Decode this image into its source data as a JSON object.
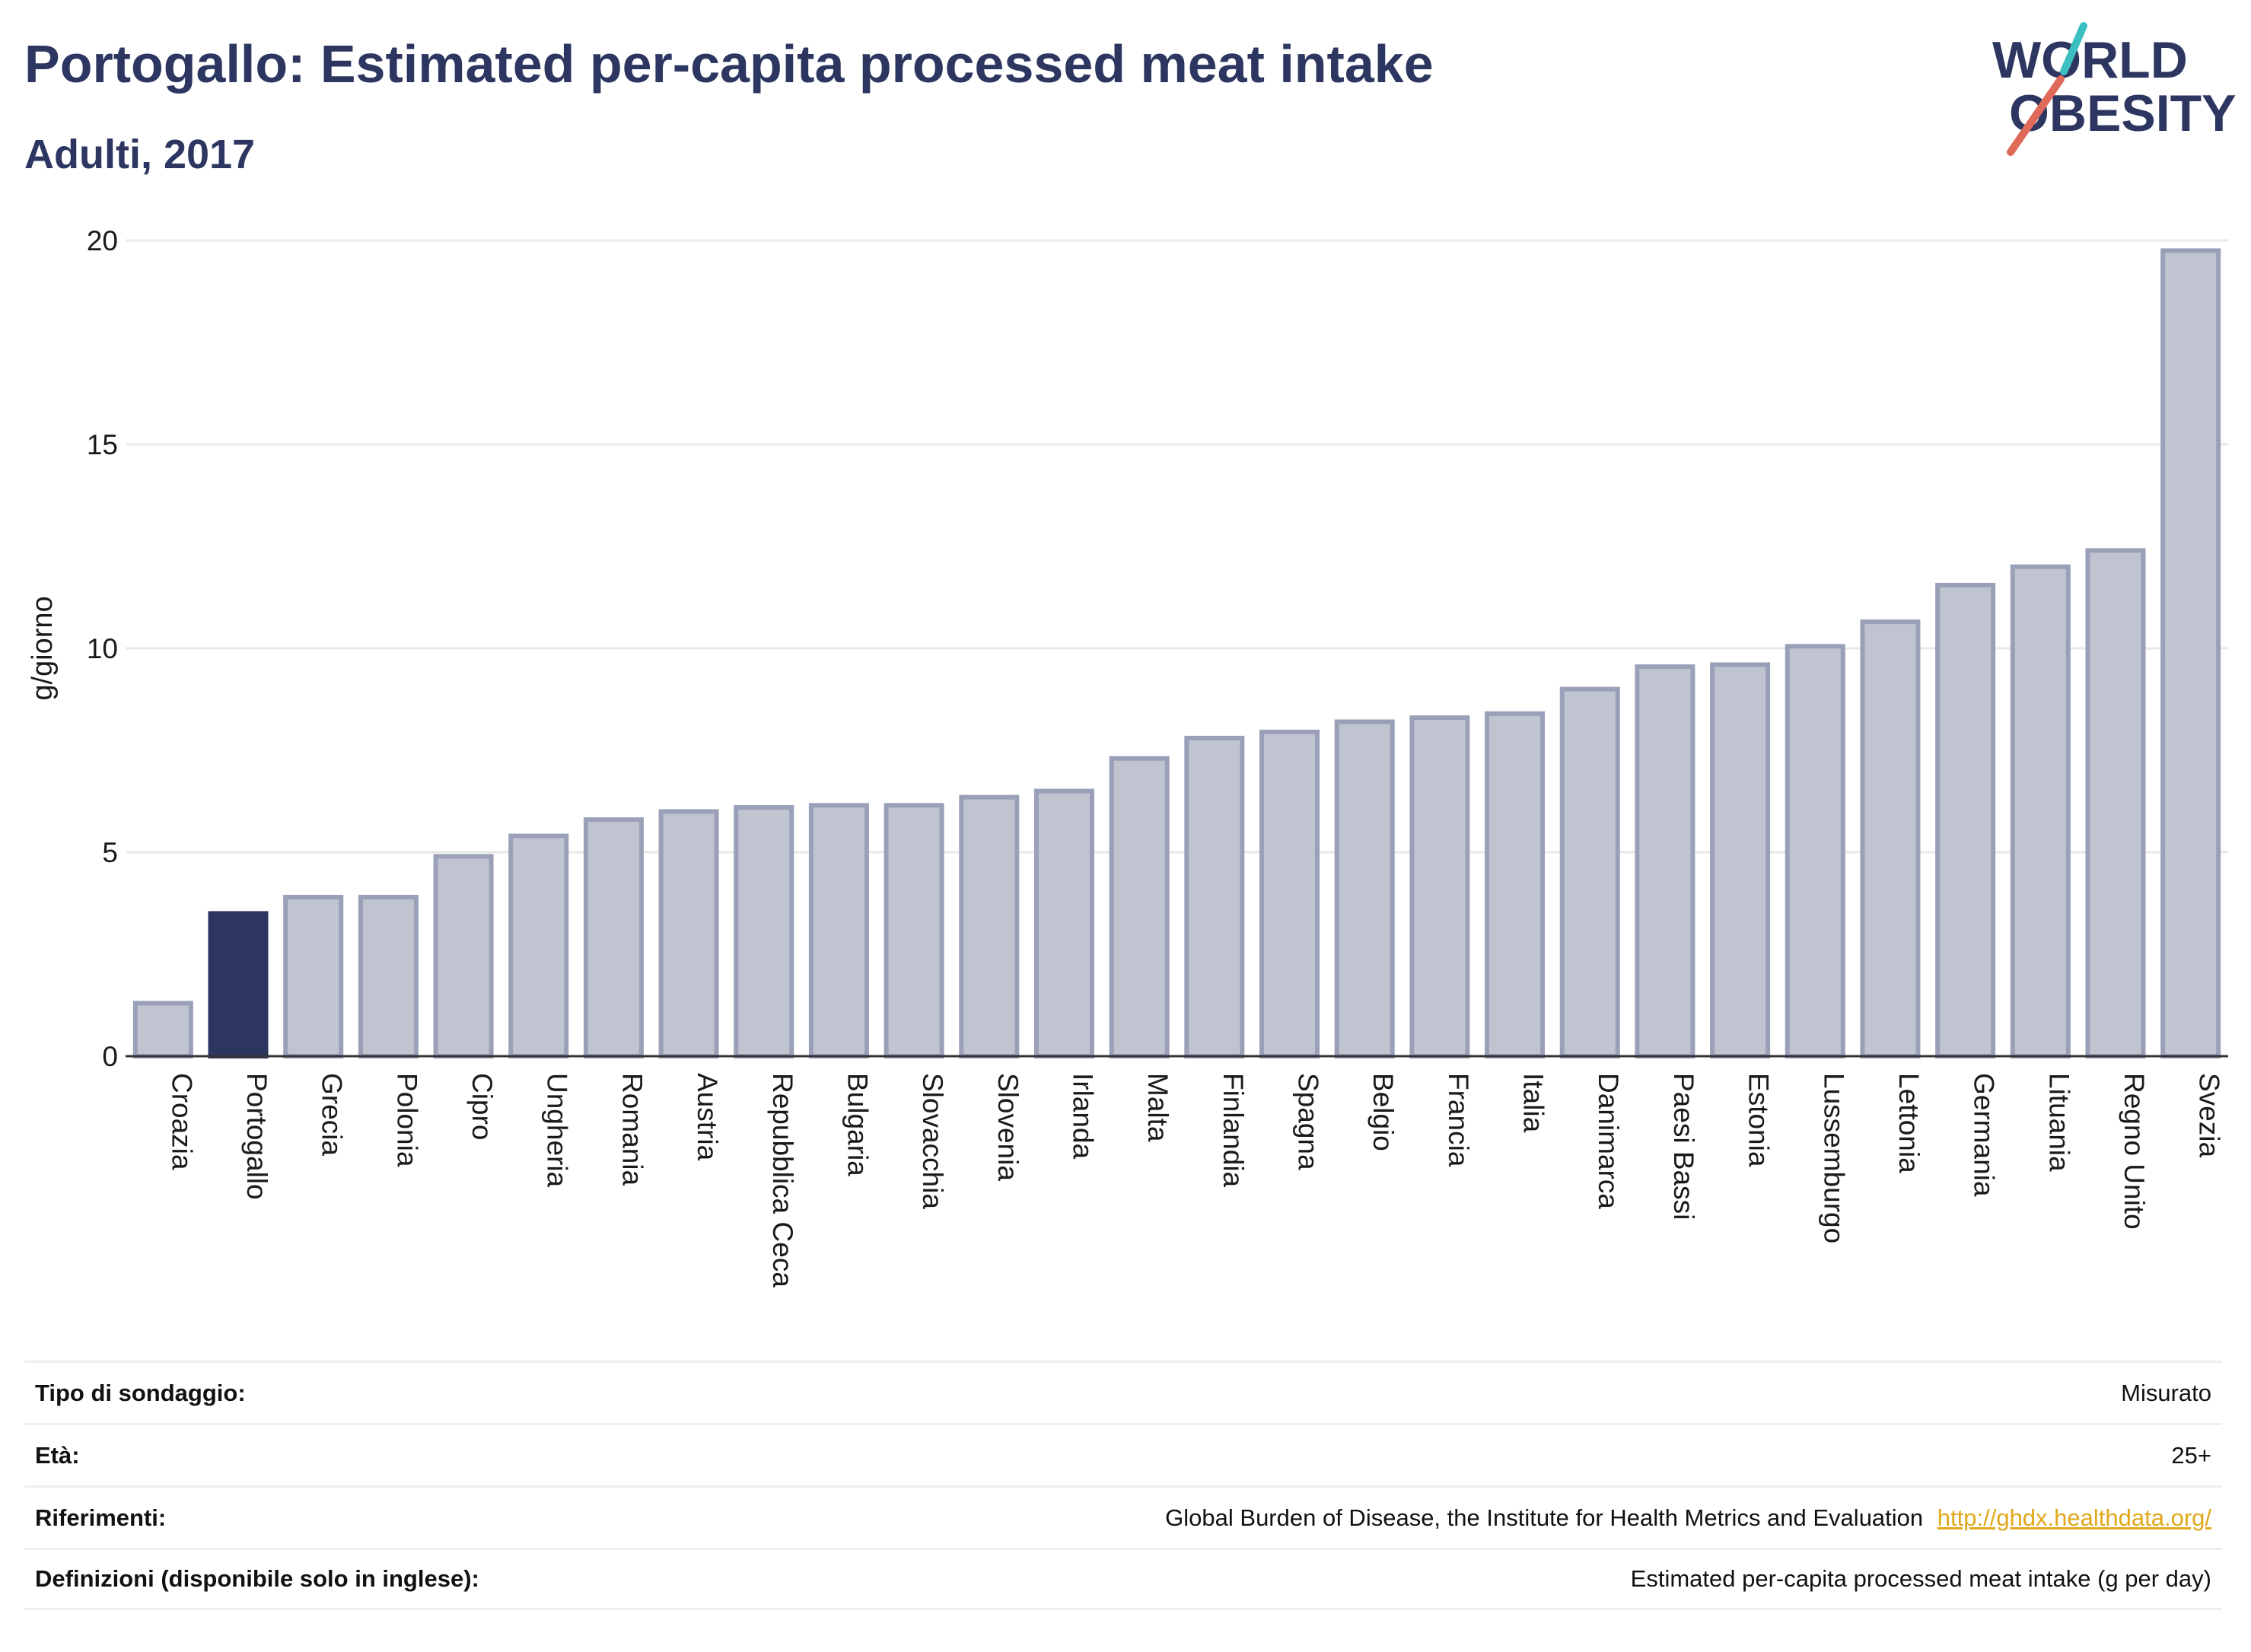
{
  "header": {
    "title": "Portogallo: Estimated per-capita processed meat intake",
    "subtitle": "Adulti, 2017"
  },
  "logo": {
    "line1": "WORLD",
    "line2": "OBESITY",
    "accent_colors": [
      "#3bbfc0",
      "#e06a5a"
    ]
  },
  "colors": {
    "bar": "#c0c4d1",
    "bar_border": "#9aa0b8",
    "highlight": "#2c3660",
    "text": "#2c3660",
    "grid": "#e8e8e8"
  },
  "chart_data": {
    "type": "bar",
    "ylabel": "g/giorno",
    "ylim": [
      0,
      20
    ],
    "yticks": [
      0,
      5,
      10,
      15,
      20
    ],
    "highlight": "Portogallo",
    "categories": [
      "Croazia",
      "Portogallo",
      "Grecia",
      "Polonia",
      "Cipro",
      "Ungheria",
      "Romania",
      "Austria",
      "Repubblica Ceca",
      "Bulgaria",
      "Slovacchia",
      "Slovenia",
      "Irlanda",
      "Malta",
      "Finlandia",
      "Spagna",
      "Belgio",
      "Francia",
      "Italia",
      "Danimarca",
      "Paesi Bassi",
      "Estonia",
      "Lussemburgo",
      "Lettonia",
      "Germania",
      "Lituania",
      "Regno Unito",
      "Svezia"
    ],
    "values": [
      1.3,
      3.5,
      3.9,
      3.9,
      4.9,
      5.4,
      5.8,
      6.0,
      6.1,
      6.15,
      6.15,
      6.35,
      6.5,
      7.3,
      7.8,
      7.95,
      8.2,
      8.3,
      8.4,
      9.0,
      9.55,
      9.6,
      10.05,
      10.65,
      11.55,
      12.0,
      12.4,
      19.75
    ]
  },
  "meta": {
    "survey_type_label": "Tipo di sondaggio:",
    "survey_type_value": "Misurato",
    "age_label": "Età:",
    "age_value": "25+",
    "refs_label": "Riferimenti:",
    "refs_value": "Global Burden of Disease, the Institute for Health Metrics and Evaluation",
    "refs_link": "http://ghdx.healthdata.org/",
    "defs_label": "Definizioni (disponibile solo in inglese):",
    "defs_value": "Estimated per-capita processed meat intake (g per day)"
  }
}
